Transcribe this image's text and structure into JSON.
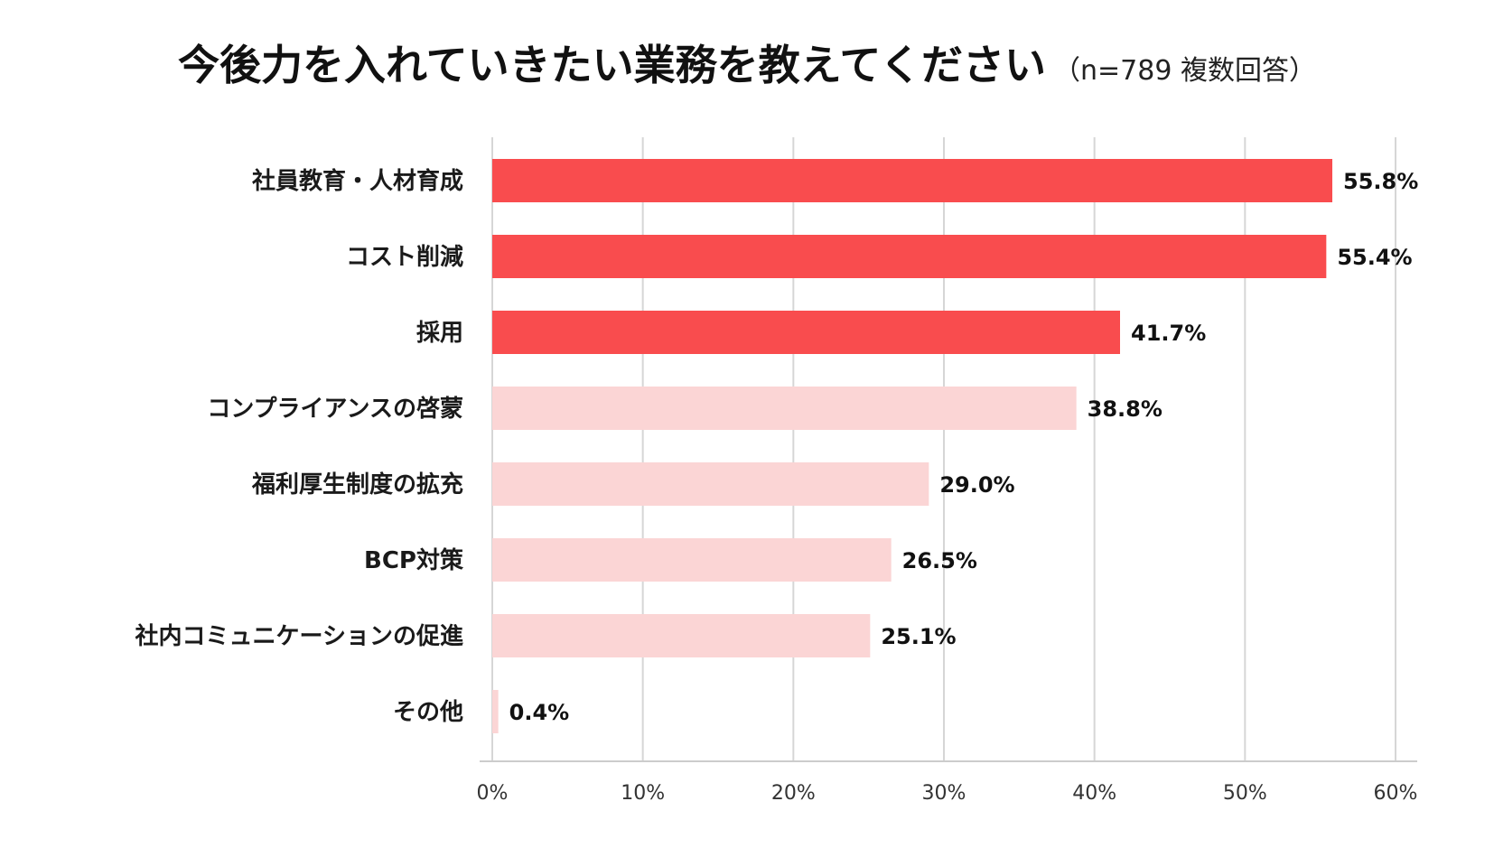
{
  "chart_data": {
    "type": "bar",
    "orientation": "horizontal",
    "title": "今後力を入れていきたい業務を教えてください",
    "subtitle": "（n=789 複数回答）",
    "categories": [
      "社員教育・人材育成",
      "コスト削減",
      "採用",
      "コンプライアンスの啓蒙",
      "福利厚生制度の拡充",
      "BCP対策",
      "社内コミュニケーションの促進",
      "その他"
    ],
    "values": [
      55.8,
      55.4,
      41.7,
      38.8,
      29.0,
      26.5,
      25.1,
      0.4
    ],
    "value_labels": [
      "55.8%",
      "55.4%",
      "41.7%",
      "38.8%",
      "29.0%",
      "26.5%",
      "25.1%",
      "0.4%"
    ],
    "highlight": [
      true,
      true,
      true,
      false,
      false,
      false,
      false,
      false
    ],
    "xlim": [
      0,
      60
    ],
    "xticks": [
      0,
      10,
      20,
      30,
      40,
      50,
      60
    ],
    "xtick_labels": [
      "0%",
      "10%",
      "20%",
      "30%",
      "40%",
      "50%",
      "60%"
    ],
    "xlabel": "",
    "ylabel": "",
    "grid": true,
    "colors": {
      "highlight": "#f94c4e",
      "normal": "#fbd5d5",
      "grid": "#d6d6d6"
    }
  }
}
